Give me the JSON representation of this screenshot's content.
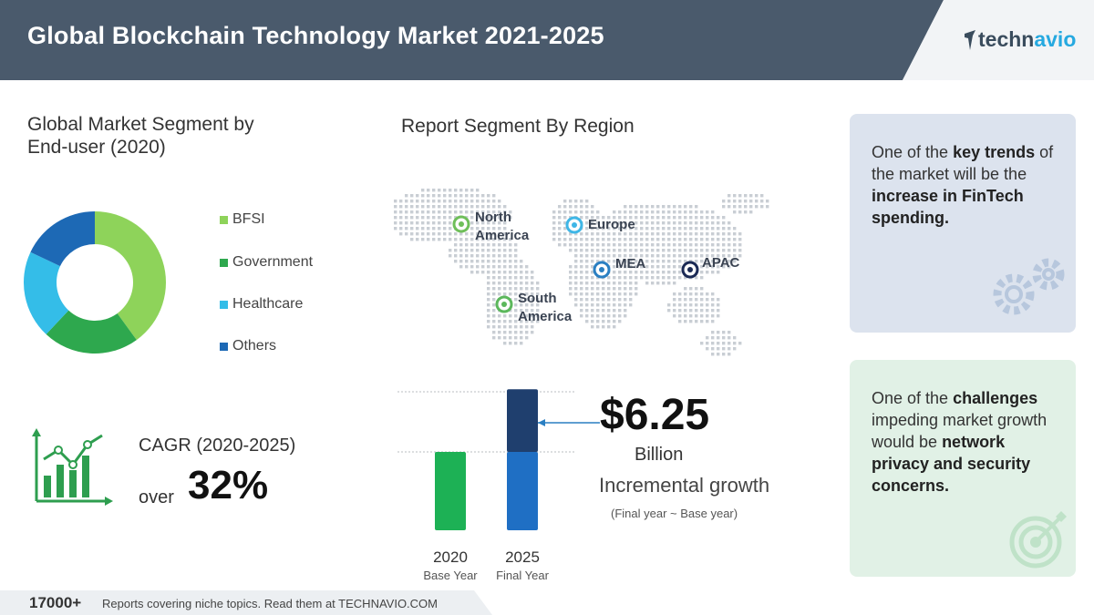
{
  "header": {
    "title": "Global Blockchain Technology Market 2021-2025",
    "logo_text_1": "techn",
    "logo_text_2": "avio",
    "background": "#4a5a6c"
  },
  "segment": {
    "title_line1": "Global Market Segment by",
    "title_line2": "End-user (2020)"
  },
  "chart_data": [
    {
      "type": "pie",
      "title": "Global Market Segment by End-user (2020)",
      "categories": [
        "BFSI",
        "Government",
        "Healthcare",
        "Others"
      ],
      "values": [
        40,
        22,
        20,
        18
      ],
      "colors": [
        "#8ed35a",
        "#2ea84e",
        "#34bde8",
        "#1d69b5"
      ],
      "legend": "right"
    },
    {
      "type": "bar",
      "categories": [
        "2020",
        "2025"
      ],
      "category_sublabels": [
        "Base Year",
        "Final Year"
      ],
      "series": [
        {
          "values": [
            1,
            1
          ],
          "color": "#1db155"
        },
        {
          "values": [
            0,
            0.8
          ],
          "color": "#1f3f6e"
        }
      ],
      "annotation": "$6.25 Billion Incremental growth"
    }
  ],
  "cagr": {
    "label": "CAGR (2020-2025)",
    "over": "over",
    "value": "32%"
  },
  "region": {
    "title": "Report Segment By Region",
    "labels": [
      {
        "line1": "North",
        "line2": "America",
        "color": "#6fbf5a"
      },
      {
        "line1": "Europe",
        "line2": "",
        "color": "#3fb6e6"
      },
      {
        "line1": "MEA",
        "line2": "",
        "color": "#2a7fc2"
      },
      {
        "line1": "APAC",
        "line2": "",
        "color": "#1b2a55"
      },
      {
        "line1": "South",
        "line2": "America",
        "color": "#5cb85c"
      }
    ]
  },
  "bars": {
    "base_year": "2020",
    "base_label": "Base Year",
    "final_year": "2025",
    "final_label": "Final Year"
  },
  "growth": {
    "value": "$6.25",
    "unit": "Billion",
    "label": "Incremental growth",
    "note": "(Final year ~ Base year)"
  },
  "cards": {
    "trend_pre": "One of the ",
    "trend_b1": "key trends",
    "trend_mid": " of the market will be the ",
    "trend_b2": "increase in FinTech spending.",
    "challenge_pre": "One of the ",
    "challenge_b1": "challenges",
    "challenge_mid": " impeding market growth would be ",
    "challenge_b2": "network privacy and security concerns."
  },
  "footer": {
    "count": "17000+",
    "text": "Reports covering niche topics. Read them at TECHNAVIO.COM"
  }
}
